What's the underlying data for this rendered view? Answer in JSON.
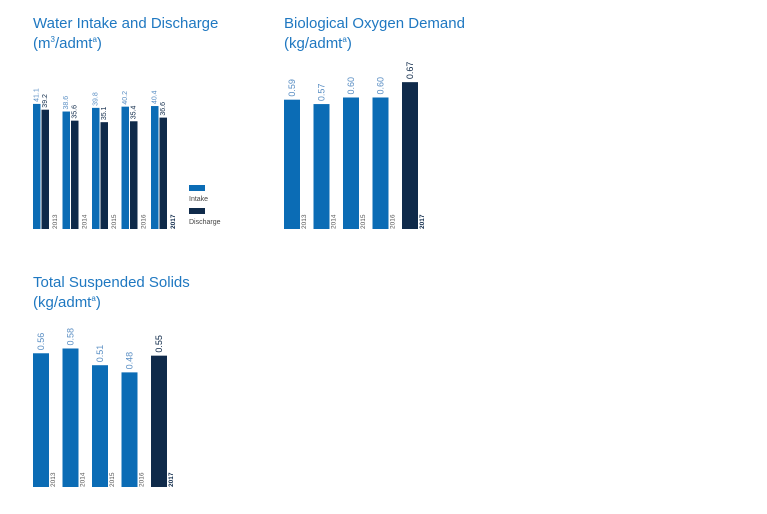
{
  "colors": {
    "primary": "#0b6cb5",
    "highlight": "#0f2a4a",
    "title": "#1f78c1",
    "label_primary": "#5b8fc4",
    "label_highlight": "#0f2a4a"
  },
  "chart_data": [
    {
      "type": "bar",
      "title": "Water Intake and Discharge",
      "unit_prefix": "(m",
      "unit_sup1": "3",
      "unit_mid": "/admt",
      "unit_sup2": "a",
      "unit_suffix": ")",
      "categories": [
        "2013",
        "2014",
        "2015",
        "2016",
        "2017"
      ],
      "series": [
        {
          "name": "Intake",
          "values": [
            41.1,
            38.6,
            39.8,
            40.2,
            40.4
          ],
          "labels": [
            "41.1",
            "38.6",
            "39.8",
            "40.2",
            "40.4"
          ]
        },
        {
          "name": "Discharge",
          "values": [
            39.2,
            35.6,
            35.1,
            35.4,
            36.6
          ],
          "labels": [
            "39.2",
            "35.6",
            "35.1",
            "35.4",
            "36.6"
          ]
        }
      ],
      "ylim": [
        0,
        46
      ],
      "legend": "right"
    },
    {
      "type": "bar",
      "title": "Biological Oxygen Demand",
      "unit_prefix": "(kg/admt",
      "unit_sup1": "a",
      "unit_mid": "",
      "unit_sup2": "",
      "unit_suffix": ")",
      "categories": [
        "2013",
        "2014",
        "2015",
        "2016",
        "2017"
      ],
      "values": [
        0.59,
        0.57,
        0.6,
        0.6,
        0.67
      ],
      "labels": [
        "0.59",
        "0.57",
        "0.60",
        "0.60",
        "0.67"
      ],
      "highlight_index": 4,
      "ylim": [
        0,
        0.73
      ]
    },
    {
      "type": "bar",
      "title": "Total Suspended Solids",
      "unit_prefix": "(kg/admt",
      "unit_sup1": "a",
      "unit_mid": "",
      "unit_sup2": "",
      "unit_suffix": ")",
      "categories": [
        "2013",
        "2014",
        "2015",
        "2016",
        "2017"
      ],
      "values": [
        0.56,
        0.58,
        0.51,
        0.48,
        0.55
      ],
      "labels": [
        "0.56",
        "0.58",
        "0.51",
        "0.48",
        "0.55"
      ],
      "highlight_index": 4,
      "ylim": [
        0,
        0.67
      ]
    }
  ]
}
